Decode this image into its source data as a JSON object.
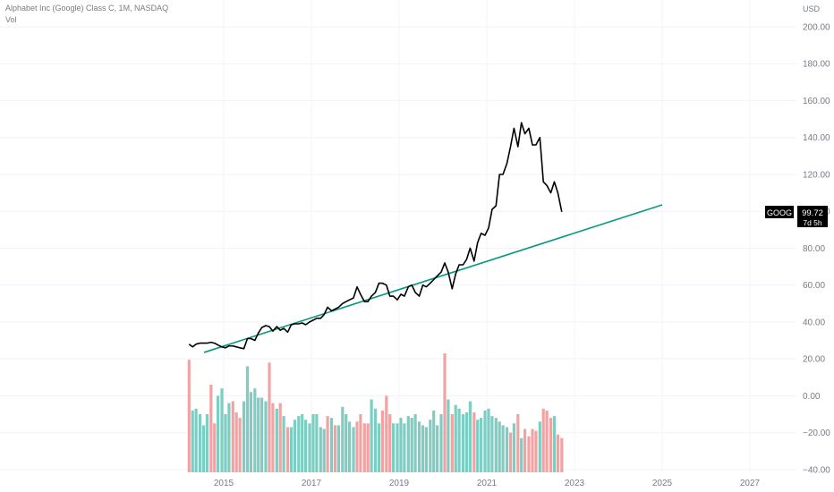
{
  "legend": {
    "title": "Alphabet Inc (Google) Class C, 1M, NASDAQ",
    "vol_label": "Vol"
  },
  "price_badge": {
    "ticker": "GOOG",
    "price": "99.72",
    "countdown": "7d 5h"
  },
  "colors": {
    "price_line": "#000000",
    "trend_line": "#089981",
    "vol_up": "#7ecdc3",
    "vol_down": "#f1a3a3",
    "grid": "#f0f3fa",
    "axis_text": "#787b86"
  },
  "chart_data": {
    "type": "line",
    "title": "Alphabet Inc (Google) Class C, 1M, NASDAQ",
    "unit_label": "USD",
    "ylim": [
      -40,
      200
    ],
    "yticks": [
      "200.00",
      "180.00",
      "160.00",
      "140.00",
      "120.00",
      "100.00",
      "80.00",
      "60.00",
      "40.00",
      "20.00",
      "0.00",
      "−20.00",
      "−40.00"
    ],
    "yticks_values": [
      200,
      180,
      160,
      140,
      120,
      100,
      80,
      60,
      40,
      20,
      0,
      -20,
      -40
    ],
    "xticks": [
      "2015",
      "2017",
      "2019",
      "2021",
      "2023",
      "2025",
      "2027"
    ],
    "xticks_values": [
      2015,
      2017,
      2019,
      2021,
      2023,
      2025,
      2027
    ],
    "xlim": [
      2014.0,
      2027.8
    ],
    "grid": true,
    "series": [
      {
        "kind": "line",
        "x": [
          2014.21,
          2014.29,
          2014.37,
          2014.46,
          2014.54,
          2014.62,
          2014.71,
          2014.79,
          2014.87,
          2014.96,
          2015.04,
          2015.12,
          2015.21,
          2015.29,
          2015.37,
          2015.46,
          2015.54,
          2015.62,
          2015.71,
          2015.79,
          2015.87,
          2015.96,
          2016.04,
          2016.12,
          2016.21,
          2016.29,
          2016.37,
          2016.46,
          2016.54,
          2016.62,
          2016.71,
          2016.79,
          2016.87,
          2016.96,
          2017.04,
          2017.12,
          2017.21,
          2017.29,
          2017.37,
          2017.46,
          2017.54,
          2017.62,
          2017.71,
          2017.79,
          2017.87,
          2017.96,
          2018.04,
          2018.12,
          2018.21,
          2018.29,
          2018.37,
          2018.46,
          2018.54,
          2018.62,
          2018.71,
          2018.79,
          2018.87,
          2018.96,
          2019.04,
          2019.12,
          2019.21,
          2019.29,
          2019.37,
          2019.46,
          2019.54,
          2019.62,
          2019.71,
          2019.79,
          2019.87,
          2019.96,
          2020.04,
          2020.12,
          2020.21,
          2020.29,
          2020.37,
          2020.46,
          2020.54,
          2020.62,
          2020.71,
          2020.79,
          2020.87,
          2020.96,
          2021.04,
          2021.12,
          2021.21,
          2021.29,
          2021.37,
          2021.46,
          2021.54,
          2021.62,
          2021.71,
          2021.79,
          2021.87,
          2021.96,
          2022.04,
          2022.12,
          2022.21,
          2022.29,
          2022.37,
          2022.46,
          2022.54,
          2022.62,
          2022.71
        ],
        "values": [
          28,
          26.5,
          28,
          28.5,
          28.5,
          28.5,
          29,
          28.5,
          27.5,
          26.5,
          26,
          27,
          27,
          26.5,
          26,
          25.5,
          31,
          31,
          30,
          34,
          37,
          38,
          37.5,
          35,
          37.5,
          35.5,
          36.5,
          34.5,
          38.5,
          39,
          39,
          39.5,
          38.5,
          40,
          41,
          42,
          42,
          44,
          48,
          46,
          47,
          48,
          50,
          51,
          52,
          53,
          59,
          55,
          51,
          51,
          54,
          56,
          61,
          61,
          60,
          54,
          54,
          52,
          55,
          54,
          59,
          60,
          56,
          54,
          60,
          59,
          61,
          63,
          65,
          67,
          72,
          67,
          58,
          66,
          71,
          71,
          74,
          80,
          73,
          83,
          88,
          87,
          91,
          101,
          103,
          120,
          120,
          126,
          135,
          145,
          135,
          148,
          142,
          145,
          136,
          136,
          140,
          116,
          114,
          110,
          116,
          110,
          99.7
        ]
      },
      {
        "kind": "trend",
        "x": [
          2014.55,
          2025.0
        ],
        "values": [
          23.5,
          103.5
        ]
      },
      {
        "kind": "volume",
        "x": [
          2014.21,
          2014.29,
          2014.37,
          2014.46,
          2014.54,
          2014.62,
          2014.71,
          2014.79,
          2014.87,
          2014.96,
          2015.04,
          2015.12,
          2015.21,
          2015.29,
          2015.37,
          2015.46,
          2015.54,
          2015.62,
          2015.71,
          2015.79,
          2015.87,
          2015.96,
          2016.04,
          2016.12,
          2016.21,
          2016.29,
          2016.37,
          2016.46,
          2016.54,
          2016.62,
          2016.71,
          2016.79,
          2016.87,
          2016.96,
          2017.04,
          2017.12,
          2017.21,
          2017.29,
          2017.37,
          2017.46,
          2017.54,
          2017.62,
          2017.71,
          2017.79,
          2017.87,
          2017.96,
          2018.04,
          2018.12,
          2018.21,
          2018.29,
          2018.37,
          2018.46,
          2018.54,
          2018.62,
          2018.71,
          2018.79,
          2018.87,
          2018.96,
          2019.04,
          2019.12,
          2019.21,
          2019.29,
          2019.37,
          2019.46,
          2019.54,
          2019.62,
          2019.71,
          2019.79,
          2019.87,
          2019.96,
          2020.04,
          2020.12,
          2020.21,
          2020.29,
          2020.37,
          2020.46,
          2020.54,
          2020.62,
          2020.71,
          2020.79,
          2020.87,
          2020.96,
          2021.04,
          2021.12,
          2021.21,
          2021.29,
          2021.37,
          2021.46,
          2021.54,
          2021.62,
          2021.71,
          2021.79,
          2021.87,
          2021.96,
          2022.04,
          2022.12,
          2022.21,
          2022.29,
          2022.37,
          2022.46,
          2022.54,
          2022.62,
          2022.71
        ],
        "values": [
          19.5,
          -8,
          -7,
          -10,
          -16,
          -10,
          6,
          -15,
          0,
          4,
          -10,
          -4,
          -3,
          -9,
          -12,
          -3,
          16,
          2,
          4,
          -1,
          -1,
          -3,
          18,
          -4,
          -7,
          -4,
          -11,
          -17,
          -17,
          -13,
          -11,
          -10,
          -13,
          -15,
          -10,
          -10,
          -17,
          -18,
          -11,
          -12,
          -16,
          -16,
          -6,
          -10,
          -14,
          -17,
          -14,
          -10,
          -15,
          -15,
          -2,
          -7,
          -15,
          -8,
          0,
          -10,
          -15,
          -15,
          -12,
          -15,
          -11,
          -12,
          -10,
          -14,
          -16,
          -17,
          -13,
          -8,
          -16,
          -10,
          23,
          -2,
          -10,
          -5,
          -7,
          -10,
          -9,
          -3,
          -9,
          -13,
          -12,
          -8,
          -7,
          -11,
          -12,
          -14,
          -16,
          -17,
          -20,
          -15,
          -10,
          -23,
          -18,
          -22,
          -18,
          -19,
          -14,
          -7,
          -8,
          -12,
          -11,
          -21,
          -23
        ],
        "colors": [
          "d",
          "u",
          "u",
          "u",
          "u",
          "u",
          "d",
          "d",
          "u",
          "u",
          "u",
          "u",
          "d",
          "d",
          "d",
          "u",
          "u",
          "u",
          "u",
          "u",
          "u",
          "u",
          "d",
          "d",
          "u",
          "d",
          "u",
          "d",
          "u",
          "u",
          "u",
          "u",
          "u",
          "u",
          "u",
          "u",
          "u",
          "u",
          "d",
          "u",
          "d",
          "u",
          "u",
          "u",
          "u",
          "u",
          "d",
          "d",
          "d",
          "d",
          "u",
          "u",
          "u",
          "d",
          "d",
          "d",
          "u",
          "u",
          "u",
          "u",
          "u",
          "u",
          "u",
          "u",
          "u",
          "u",
          "u",
          "u",
          "u",
          "u",
          "d",
          "u",
          "d",
          "u",
          "u",
          "u",
          "u",
          "u",
          "d",
          "u",
          "u",
          "u",
          "u",
          "u",
          "u",
          "u",
          "u",
          "u",
          "d",
          "u",
          "d",
          "u",
          "d",
          "d",
          "d",
          "d",
          "u",
          "d",
          "d",
          "d",
          "u",
          "d",
          "d"
        ]
      }
    ]
  }
}
